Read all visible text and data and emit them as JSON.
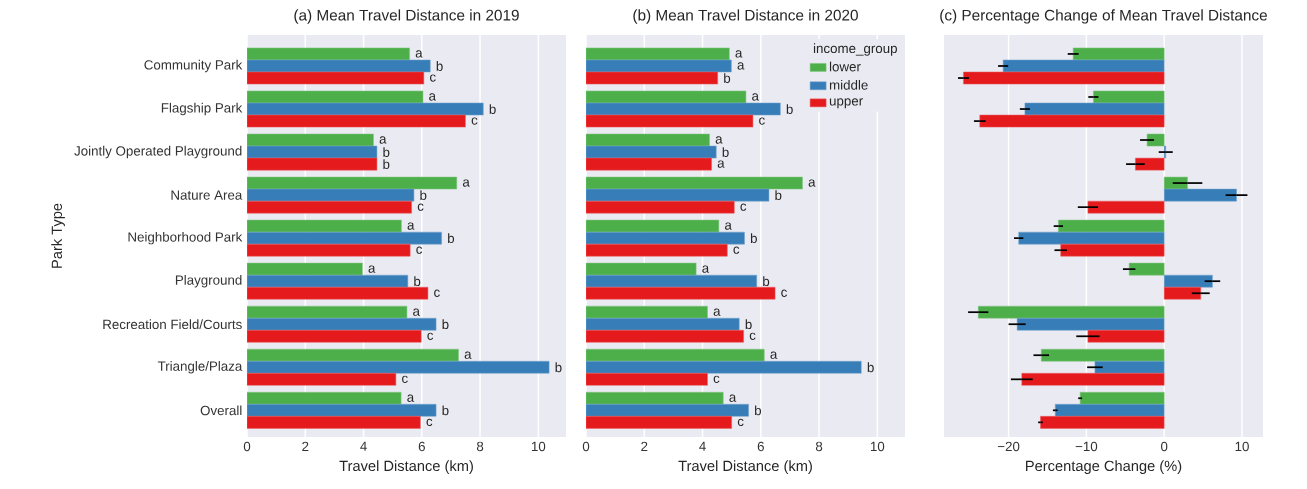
{
  "chart_data": [
    {
      "type": "bar",
      "orientation": "horizontal",
      "title": "(a) Mean Travel Distance in 2019",
      "xlabel": "Travel Distance (km)",
      "ylabel": "Park Type",
      "categories": [
        "Community Park",
        "Flagship Park",
        "Jointly Operated Playground",
        "Nature Area",
        "Neighborhood Park",
        "Playground",
        "Recreation Field/Courts",
        "Triangle/Plaza",
        "Overall"
      ],
      "series": [
        {
          "color": "#4daf4a",
          "values": [
            5.58,
            6.04,
            4.34,
            7.2,
            5.3,
            3.96,
            5.49,
            7.26,
            5.29
          ],
          "value_labels": [
            "a",
            "a",
            "a",
            "a",
            "a",
            "a",
            "a",
            "a",
            "a"
          ]
        },
        {
          "color": "#377eb8",
          "values": [
            6.29,
            8.11,
            4.46,
            5.73,
            6.68,
            5.52,
            6.49,
            10.37,
            6.49
          ],
          "value_labels": [
            "b",
            "b",
            "b",
            "b",
            "b",
            "b",
            "b",
            "b",
            "b"
          ]
        },
        {
          "color": "#e41a1c",
          "values": [
            6.07,
            7.5,
            4.46,
            5.65,
            5.6,
            6.21,
            5.98,
            5.11,
            5.95
          ],
          "value_labels": [
            "c",
            "c",
            "b",
            "c",
            "c",
            "c",
            "c",
            "c",
            "c"
          ]
        }
      ],
      "xlim": [
        0,
        10.95
      ],
      "xticks": [
        0,
        2,
        4,
        6,
        8,
        10
      ],
      "grid": "x"
    },
    {
      "type": "bar",
      "orientation": "horizontal",
      "title": "(b) Mean Travel Distance in 2020",
      "xlabel": "Travel Distance (km)",
      "legend": "top right",
      "legend_title": "income_group",
      "categories": [
        null,
        null,
        null,
        null,
        null,
        null,
        null,
        null,
        null
      ],
      "series": [
        {
          "name": "lower",
          "color": "#4daf4a",
          "values": [
            4.92,
            5.49,
            4.24,
            7.43,
            4.56,
            3.78,
            4.17,
            6.12,
            4.71
          ],
          "value_labels": [
            "a",
            "a",
            "a",
            "a",
            "a",
            "a",
            "a",
            "a",
            "a"
          ]
        },
        {
          "name": "middle",
          "color": "#377eb8",
          "values": [
            4.99,
            6.67,
            4.47,
            6.28,
            5.44,
            5.86,
            5.26,
            9.45,
            5.58
          ],
          "value_labels": [
            "a",
            "b",
            "b",
            "b",
            "b",
            "b",
            "b",
            "b",
            "b"
          ]
        },
        {
          "name": "upper",
          "color": "#e41a1c",
          "values": [
            4.52,
            5.73,
            4.31,
            5.09,
            4.85,
            6.49,
            5.41,
            4.17,
            5.0
          ],
          "value_labels": [
            "b",
            "c",
            "a",
            "c",
            "c",
            "c",
            "c",
            "c",
            "c"
          ]
        }
      ],
      "xlim": [
        0,
        10.95
      ],
      "xticks": [
        0,
        2,
        4,
        6,
        8,
        10
      ],
      "grid": "x",
      "tick_labels": "x"
    },
    {
      "type": "bar",
      "orientation": "horizontal",
      "title": "(c) Percentage Change of Mean Travel Distance",
      "xlabel": "Percentage Change (%)",
      "categories": [
        null,
        null,
        null,
        null,
        null,
        null,
        null,
        null,
        null
      ],
      "series": [
        {
          "color": "#4daf4a",
          "values": [
            -11.7,
            -9.1,
            -2.2,
            3.0,
            -13.6,
            -4.5,
            -23.9,
            -15.8,
            -10.8
          ],
          "errors": [
            0.7,
            0.65,
            0.9,
            1.9,
            0.6,
            0.8,
            1.3,
            1.0,
            0.25
          ]
        },
        {
          "color": "#377eb8",
          "values": [
            -20.7,
            -17.9,
            0.2,
            9.3,
            -18.7,
            6.2,
            -18.9,
            -8.9,
            -14.0
          ],
          "errors": [
            0.65,
            0.65,
            0.9,
            1.4,
            0.6,
            1.0,
            1.1,
            1.0,
            0.3
          ]
        },
        {
          "color": "#e41a1c",
          "values": [
            -25.8,
            -23.7,
            -3.7,
            -9.8,
            -13.3,
            4.7,
            -9.8,
            -18.3,
            -15.9
          ],
          "errors": [
            0.7,
            0.75,
            1.2,
            1.3,
            0.8,
            1.15,
            1.5,
            1.4,
            0.3
          ]
        }
      ],
      "xlim": [
        -28.3,
        12.7
      ],
      "xticks": [
        {
          "value": -20,
          "label": "−20"
        },
        {
          "value": -10,
          "label": "−10"
        },
        0,
        10
      ],
      "grid": "x",
      "tick_labels": "x"
    }
  ]
}
